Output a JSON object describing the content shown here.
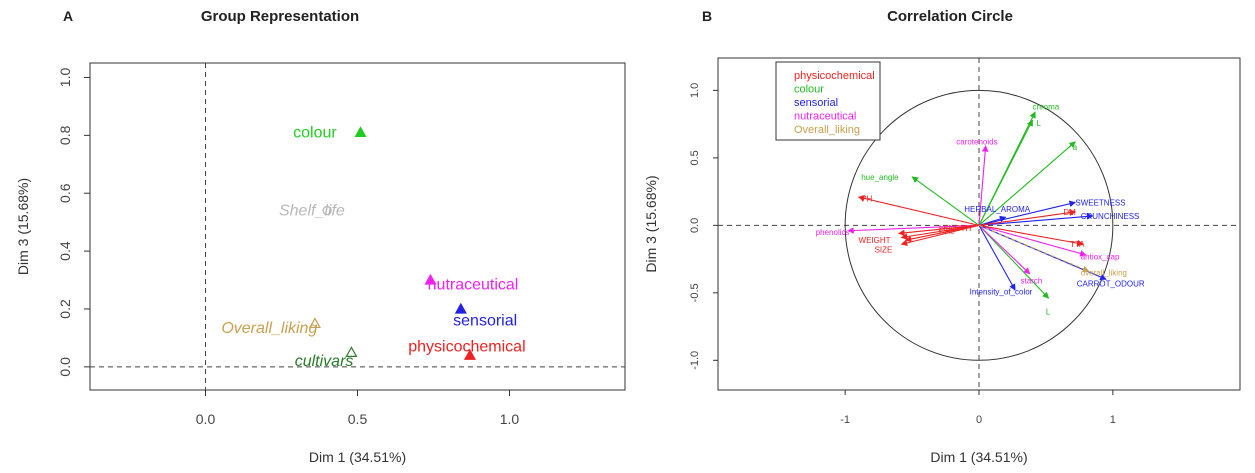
{
  "figure": {
    "panel_a_letter": "A",
    "panel_b_letter": "B"
  },
  "chart_data": [
    {
      "type": "scatter",
      "title": "Group Representation",
      "xlabel": "Dim 1 (34.51%)",
      "ylabel": "Dim 3 (15.68%)",
      "xlim": [
        -0.38,
        1.38
      ],
      "ylim": [
        -0.08,
        1.05
      ],
      "xticks": [
        0.0,
        0.5,
        1.0
      ],
      "xtick_labels": [
        "0.0",
        "0.5",
        "1.0"
      ],
      "yticks": [
        0.0,
        0.2,
        0.4,
        0.6,
        0.8,
        1.0
      ],
      "ytick_labels": [
        "0.0",
        "0.2",
        "0.4",
        "0.6",
        "0.8",
        "1.0"
      ],
      "reference_lines": {
        "x": 0,
        "y": 0
      },
      "points": [
        {
          "label": "colour",
          "x": 0.51,
          "y": 0.81,
          "color": "#22cc22",
          "marker": "triangle",
          "label_dx": -0.15,
          "label_dy": 0.0,
          "italic": false
        },
        {
          "label": "Shelf_life",
          "x": 0.4,
          "y": 0.54,
          "color": "#b8b8b8",
          "marker": "circle",
          "label_dx": -0.05,
          "label_dy": 0.0,
          "italic": true
        },
        {
          "label": "nutraceutical",
          "x": 0.74,
          "y": 0.3,
          "color": "#ee22ee",
          "marker": "triangle",
          "label_dx": 0.14,
          "label_dy": -0.015,
          "italic": false
        },
        {
          "label": "sensorial",
          "x": 0.84,
          "y": 0.2,
          "color": "#2222dd",
          "marker": "triangle",
          "label_dx": 0.08,
          "label_dy": -0.04,
          "italic": false
        },
        {
          "label": "Overall_liking",
          "x": 0.36,
          "y": 0.15,
          "color": "#c8a050",
          "marker": "triangle-open",
          "label_dx": -0.15,
          "label_dy": -0.015,
          "italic": true
        },
        {
          "label": "cultivars",
          "x": 0.48,
          "y": 0.05,
          "color": "#2a7a2a",
          "marker": "triangle-open",
          "label_dx": -0.09,
          "label_dy": -0.03,
          "italic": true
        },
        {
          "label": "physicochemical",
          "x": 0.87,
          "y": 0.04,
          "color": "#ee2222",
          "marker": "triangle",
          "label_dx": -0.01,
          "label_dy": 0.03,
          "italic": false
        }
      ]
    },
    {
      "type": "scatter",
      "title": "Correlation Circle",
      "xlabel": "Dim 1 (34.51%)",
      "ylabel": "Dim 3 (15.68%)",
      "xlim": [
        -1.95,
        1.95
      ],
      "ylim": [
        -1.22,
        1.24
      ],
      "xticks": [
        -1,
        0,
        1
      ],
      "xtick_labels": [
        "-1",
        "0",
        "1"
      ],
      "yticks": [
        -1.0,
        -0.5,
        0.0,
        0.5,
        1.0
      ],
      "ytick_labels": [
        "-1.0",
        "-0.5",
        "0.0",
        "0.5",
        "1.0"
      ],
      "reference_lines": {
        "x": 0,
        "y": 0
      },
      "unit_circle": true,
      "legend_position": "top-left",
      "legend": [
        {
          "name": "physicochemical",
          "color": "#ee2222"
        },
        {
          "name": "colour",
          "color": "#22bb22"
        },
        {
          "name": "sensorial",
          "color": "#2222ee"
        },
        {
          "name": "nutraceutical",
          "color": "#ee22ee"
        },
        {
          "name": "Overall_liking",
          "color": "#c8a050"
        }
      ],
      "vectors": [
        {
          "label": "chroma",
          "x": 0.42,
          "y": 0.84,
          "group": "colour",
          "lx": 0.4,
          "ly": 0.88
        },
        {
          "label": "L",
          "x": 0.4,
          "y": 0.78,
          "group": "colour",
          "lx": 0.43,
          "ly": 0.76
        },
        {
          "label": "a",
          "x": 0.72,
          "y": 0.62,
          "group": "colour",
          "lx": 0.7,
          "ly": 0.58
        },
        {
          "label": "hue_angle",
          "x": -0.5,
          "y": 0.36,
          "group": "colour",
          "lx": -0.88,
          "ly": 0.36
        },
        {
          "label": "L",
          "x": 0.52,
          "y": -0.54,
          "group": "colour",
          "lx": 0.5,
          "ly": -0.64
        },
        {
          "label": "carotenoids",
          "x": 0.05,
          "y": 0.59,
          "group": "nutraceutical",
          "lx": -0.17,
          "ly": 0.62
        },
        {
          "label": "phenolics",
          "x": -0.98,
          "y": -0.04,
          "group": "nutraceutical",
          "lx": -1.22,
          "ly": -0.05
        },
        {
          "label": "antiox_cap",
          "x": 0.8,
          "y": -0.22,
          "group": "nutraceutical",
          "lx": 0.76,
          "ly": -0.23
        },
        {
          "label": "starch",
          "x": 0.38,
          "y": -0.36,
          "group": "nutraceutical",
          "lx": 0.31,
          "ly": -0.41
        },
        {
          "label": "SWEETNESS",
          "x": 0.72,
          "y": 0.17,
          "group": "sensorial",
          "lx": 0.72,
          "ly": 0.17
        },
        {
          "label": "CRUNCHINESS",
          "x": 0.85,
          "y": 0.07,
          "group": "sensorial",
          "lx": 0.76,
          "ly": 0.07
        },
        {
          "label": "HERBAL_AROMA",
          "x": 0.2,
          "y": 0.06,
          "group": "sensorial",
          "lx": -0.11,
          "ly": 0.12
        },
        {
          "label": "CARROT_ODOUR",
          "x": 0.95,
          "y": -0.4,
          "group": "sensorial",
          "lx": 0.73,
          "ly": -0.43
        },
        {
          "label": "Intensity_of_color",
          "x": 0.27,
          "y": -0.48,
          "group": "sensorial",
          "lx": -0.07,
          "ly": -0.49
        },
        {
          "label": "PH",
          "x": -0.9,
          "y": 0.21,
          "group": "physicochemical",
          "lx": -0.88,
          "ly": 0.2
        },
        {
          "label": "DM",
          "x": 0.72,
          "y": 0.1,
          "group": "physicochemical",
          "lx": 0.63,
          "ly": 0.1
        },
        {
          "label": "TTA",
          "x": 0.78,
          "y": -0.14,
          "group": "physicochemical",
          "lx": 0.68,
          "ly": -0.14
        },
        {
          "label": "WEIGHT",
          "x": -0.58,
          "y": -0.09,
          "group": "physicochemical",
          "lx": -0.9,
          "ly": -0.11
        },
        {
          "label": "SIZE",
          "x": -0.58,
          "y": -0.14,
          "group": "physicochemical",
          "lx": -0.78,
          "ly": -0.18
        },
        {
          "label": "LENGTH",
          "x": -0.6,
          "y": -0.06,
          "group": "physicochemical",
          "lx": -0.3,
          "ly": -0.02
        },
        {
          "label": "CAL",
          "x": -0.55,
          "y": -0.11,
          "group": "physicochemical",
          "lx": -0.3,
          "ly": -0.04
        },
        {
          "label": "overall_liking",
          "x": 0.82,
          "y": -0.34,
          "group": "Overall_liking",
          "lx": 0.76,
          "ly": -0.35
        }
      ]
    }
  ]
}
